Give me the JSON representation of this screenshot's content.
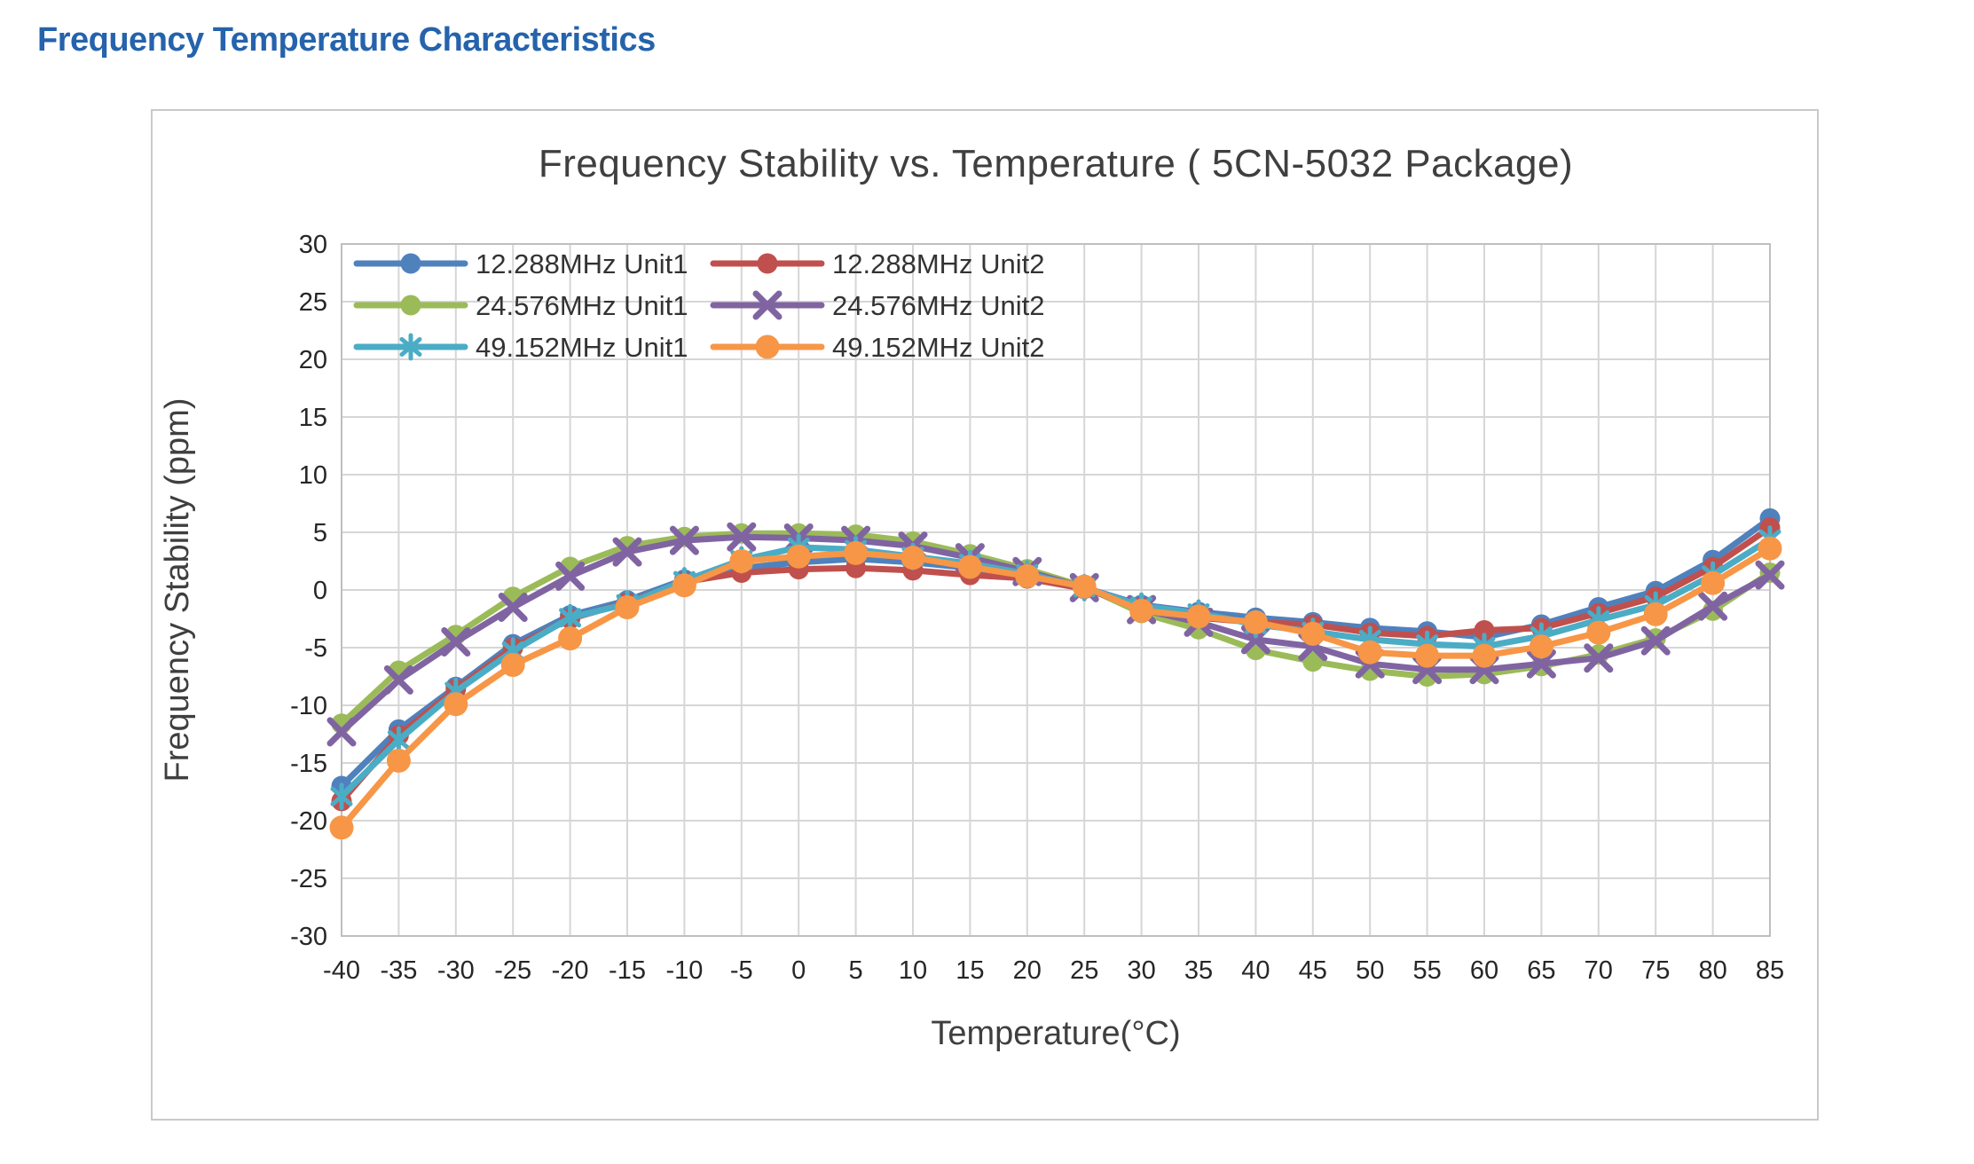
{
  "page": {
    "heading": "Frequency Temperature Characteristics",
    "heading_color": "#2563ac"
  },
  "chart_data": {
    "type": "line",
    "title": "Frequency Stability vs. Temperature ( 5CN-5032 Package)",
    "xlabel": "Temperature(°C)",
    "ylabel": "Frequency Stability (ppm)",
    "xlim": [
      -40,
      85
    ],
    "ylim": [
      -30,
      30
    ],
    "xtick_step": 5,
    "ytick_step": 5,
    "grid": true,
    "legend_position": "top-left-inside",
    "xticks": [
      "-40",
      "-35",
      "-30",
      "-25",
      "-20",
      "-15",
      "-10",
      "-5",
      "0",
      "5",
      "10",
      "15",
      "20",
      "25",
      "30",
      "35",
      "40",
      "45",
      "50",
      "55",
      "60",
      "65",
      "70",
      "75",
      "80",
      "85"
    ],
    "yticks": [
      "30",
      "25",
      "20",
      "15",
      "10",
      "5",
      "0",
      "-5",
      "-10",
      "-15",
      "-20",
      "-25",
      "-30"
    ],
    "x": [
      -40,
      -35,
      -30,
      -25,
      -20,
      -15,
      -10,
      -5,
      0,
      5,
      10,
      15,
      20,
      25,
      30,
      35,
      40,
      45,
      50,
      55,
      60,
      65,
      70,
      75,
      80,
      85
    ],
    "series": [
      {
        "name": "12.288MHz Unit1",
        "color": "#4F81BD",
        "marker": "circle",
        "values": [
          -17.0,
          -12.1,
          -8.4,
          -4.7,
          -2.2,
          -0.9,
          0.9,
          1.9,
          2.4,
          2.7,
          2.4,
          1.9,
          1.2,
          0.2,
          -1.3,
          -1.9,
          -2.4,
          -2.8,
          -3.3,
          -3.6,
          -4.1,
          -3.0,
          -1.5,
          -0.1,
          2.6,
          6.2
        ]
      },
      {
        "name": "12.288MHz Unit2",
        "color": "#C0504D",
        "marker": "circle",
        "values": [
          -18.3,
          -12.6,
          -8.6,
          -5.0,
          -2.5,
          -1.1,
          0.7,
          1.5,
          1.8,
          1.9,
          1.7,
          1.3,
          1.0,
          0.1,
          -1.5,
          -2.4,
          -2.8,
          -3.0,
          -3.7,
          -4.0,
          -3.5,
          -3.3,
          -2.0,
          -0.6,
          2.0,
          5.4
        ]
      },
      {
        "name": "24.576MHz Unit1",
        "color": "#9BBB59",
        "marker": "circle",
        "values": [
          -11.6,
          -7.0,
          -3.9,
          -0.6,
          2.0,
          3.8,
          4.6,
          4.9,
          4.9,
          4.8,
          4.2,
          3.1,
          1.8,
          0.3,
          -2.0,
          -3.4,
          -5.2,
          -6.2,
          -7.0,
          -7.5,
          -7.3,
          -6.6,
          -5.6,
          -4.2,
          -1.8,
          1.5
        ]
      },
      {
        "name": "24.576MHz Unit2",
        "color": "#8064A2",
        "marker": "x",
        "values": [
          -12.3,
          -7.8,
          -4.5,
          -1.5,
          1.2,
          3.3,
          4.3,
          4.6,
          4.5,
          4.3,
          3.8,
          2.8,
          1.6,
          0.2,
          -1.7,
          -2.8,
          -4.3,
          -4.9,
          -6.4,
          -6.9,
          -6.9,
          -6.4,
          -5.9,
          -4.4,
          -1.4,
          1.3
        ]
      },
      {
        "name": "49.152MHz Unit1",
        "color": "#4BACC6",
        "marker": "asterisk",
        "values": [
          -17.9,
          -13.0,
          -8.8,
          -5.3,
          -2.4,
          -1.2,
          0.8,
          2.6,
          3.7,
          3.5,
          2.9,
          2.3,
          1.4,
          0.2,
          -1.4,
          -2.0,
          -3.0,
          -3.6,
          -4.3,
          -4.7,
          -4.9,
          -4.0,
          -2.6,
          -1.3,
          1.3,
          4.4
        ]
      },
      {
        "name": "49.152MHz Unit2",
        "color": "#F79646",
        "marker": "circle",
        "values": [
          -20.6,
          -14.8,
          -9.9,
          -6.5,
          -4.2,
          -1.5,
          0.4,
          2.5,
          2.9,
          3.2,
          2.8,
          2.0,
          1.2,
          0.3,
          -1.8,
          -2.3,
          -2.8,
          -3.8,
          -5.4,
          -5.7,
          -5.7,
          -4.9,
          -3.7,
          -2.1,
          0.6,
          3.6
        ]
      }
    ],
    "style": {
      "grid_color": "#d6d6d6",
      "tick_label_color": "#262626",
      "title_color": "#3f3f3f",
      "axis_title_color": "#3f3f3f",
      "legend_text_color": "#333333"
    }
  }
}
